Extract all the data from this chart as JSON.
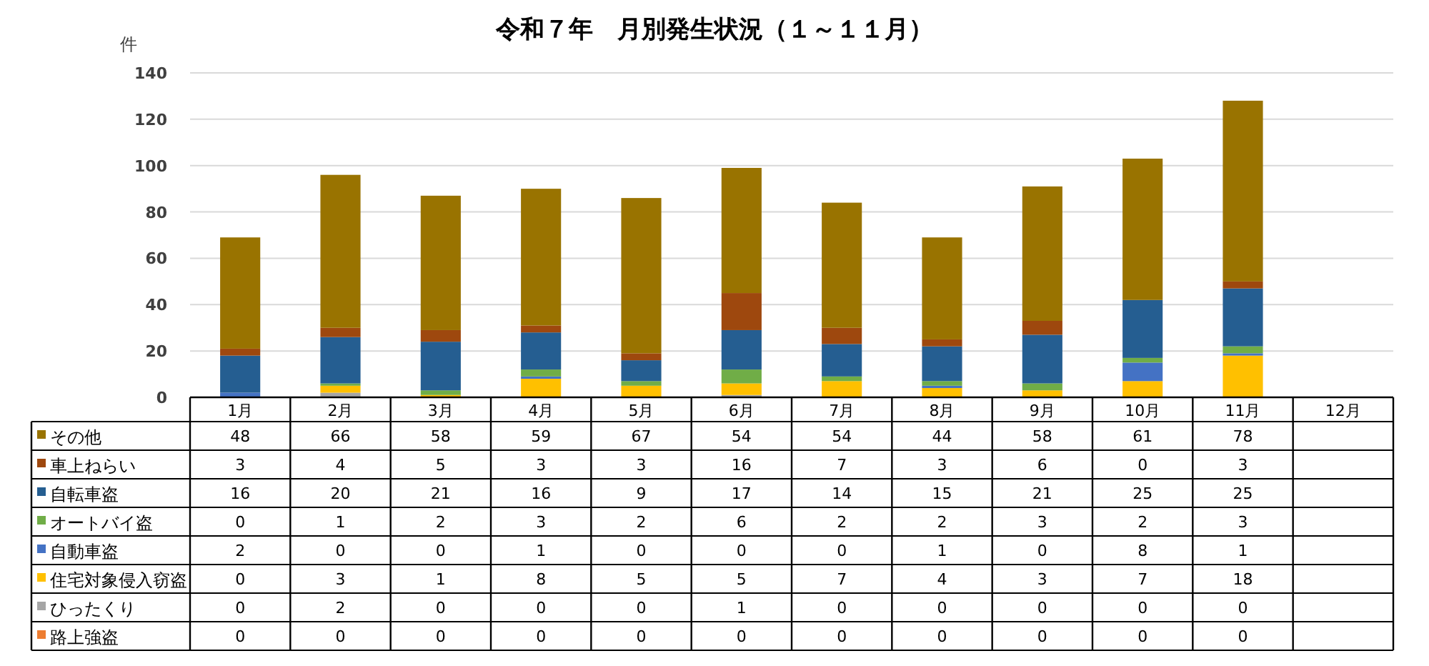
{
  "chart_data": {
    "type": "bar",
    "title": "令和７年　月別発生状況（１～１１月）",
    "ylabel": "件",
    "stacked": true,
    "grid": "y",
    "legend": "bottom",
    "data_labels": true,
    "categories": [
      "1月",
      "2月",
      "3月",
      "4月",
      "5月",
      "6月",
      "7月",
      "8月",
      "9月",
      "10月",
      "11月",
      "12月"
    ],
    "ylim": [
      0,
      140
    ],
    "yticks": [
      0,
      20,
      40,
      60,
      80,
      100,
      120,
      140
    ],
    "series": [
      {
        "name": "路上強盗",
        "color": "#ed7d31",
        "values": [
          0,
          0,
          0,
          0,
          0,
          0,
          0,
          0,
          0,
          0,
          0,
          null
        ]
      },
      {
        "name": "ひったくり",
        "color": "#a5a5a5",
        "values": [
          0,
          2,
          0,
          0,
          0,
          1,
          0,
          0,
          0,
          0,
          0,
          null
        ]
      },
      {
        "name": "住宅対象侵入窃盗",
        "color": "#ffc000",
        "values": [
          0,
          3,
          1,
          8,
          5,
          5,
          7,
          4,
          3,
          7,
          18,
          null
        ]
      },
      {
        "name": "自動車盗",
        "color": "#4472c4",
        "values": [
          2,
          0,
          0,
          1,
          0,
          0,
          0,
          1,
          0,
          8,
          1,
          null
        ]
      },
      {
        "name": "オートバイ盗",
        "color": "#70ad47",
        "values": [
          0,
          1,
          2,
          3,
          2,
          6,
          2,
          2,
          3,
          2,
          3,
          null
        ]
      },
      {
        "name": "自転車盗",
        "color": "#255e91",
        "values": [
          16,
          20,
          21,
          16,
          9,
          17,
          14,
          15,
          21,
          25,
          25,
          null
        ]
      },
      {
        "name": "車上ねらい",
        "color": "#9e480e",
        "values": [
          3,
          4,
          5,
          3,
          3,
          16,
          7,
          3,
          6,
          0,
          3,
          null
        ]
      },
      {
        "name": "その他",
        "color": "#997300",
        "values": [
          48,
          66,
          58,
          59,
          67,
          54,
          54,
          44,
          58,
          61,
          78,
          null
        ]
      }
    ]
  }
}
